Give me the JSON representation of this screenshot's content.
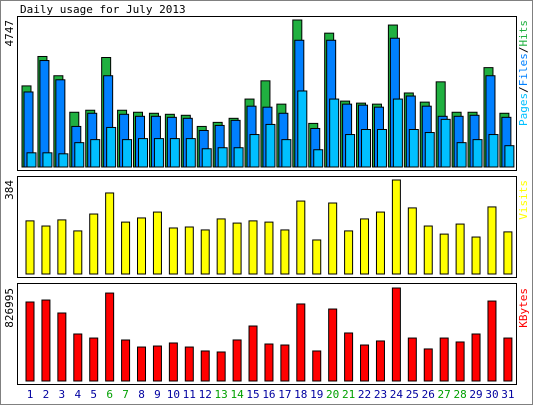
{
  "chart_data": [
    {
      "type": "bar",
      "title": "Daily usage for July 2013",
      "legend_separator": "/",
      "series": [
        {
          "name": "Pages",
          "color": "#00c0ff",
          "values": [
            458,
            458,
            426,
            786,
            884,
            1277,
            884,
            917,
            917,
            917,
            917,
            589,
            622,
            622,
            1048,
            1375,
            884,
            2455,
            557,
            2194,
            1048,
            1211,
            1211,
            2194,
            1211,
            1113,
            1539,
            786,
            884,
            1048,
            688
          ]
        },
        {
          "name": "Files",
          "color": "#0080ff",
          "values": [
            2423,
            3438,
            2816,
            1310,
            1735,
            2947,
            1702,
            1637,
            1637,
            1604,
            1572,
            1179,
            1342,
            1506,
            1964,
            1932,
            1735,
            4093,
            1244,
            4093,
            2030,
            1997,
            1932,
            4158,
            2292,
            1964,
            1637,
            1637,
            1670,
            2947,
            1604
          ]
        },
        {
          "name": "Hits",
          "color": "#20b040",
          "values": [
            2619,
            3569,
            2947,
            1768,
            1833,
            3536,
            1833,
            1768,
            1735,
            1702,
            1670,
            1310,
            1441,
            1572,
            2194,
            2783,
            2030,
            4747,
            1408,
            4322,
            2128,
            2063,
            2030,
            4584,
            2390,
            2095,
            2750,
            1768,
            1768,
            3209,
            1735
          ]
        }
      ],
      "ylim": [
        0,
        4747
      ],
      "yticks": [
        4747
      ]
    },
    {
      "type": "bar",
      "series": [
        {
          "name": "Visits",
          "color": "#ffff00",
          "values": [
            217,
            196,
            221,
            176,
            245,
            331,
            212,
            229,
            253,
            188,
            192,
            180,
            225,
            208,
            217,
            212,
            180,
            298,
            139,
            290,
            176,
            225,
            253,
            384,
            270,
            196,
            163,
            204,
            151,
            274,
            172
          ]
        }
      ],
      "ylim": [
        0,
        384
      ],
      "yticks": [
        384
      ]
    },
    {
      "type": "bar",
      "series": [
        {
          "name": "KBytes",
          "color": "#ff0000",
          "values": [
            702500,
            720000,
            604700,
            418000,
            382000,
            782000,
            364600,
            302000,
            311000,
            338000,
            302000,
            267000,
            258000,
            365000,
            489000,
            329000,
            320000,
            685000,
            267000,
            640000,
            427000,
            320000,
            356000,
            826995,
            382000,
            285000,
            382000,
            347000,
            418000,
            711000,
            382000
          ]
        }
      ],
      "ylim": [
        0,
        826995
      ],
      "yticks": [
        826995
      ],
      "categories": [
        "1",
        "2",
        "3",
        "4",
        "5",
        "6",
        "7",
        "8",
        "9",
        "10",
        "11",
        "12",
        "13",
        "14",
        "15",
        "16",
        "17",
        "18",
        "19",
        "20",
        "21",
        "22",
        "23",
        "24",
        "25",
        "26",
        "27",
        "28",
        "29",
        "30",
        "31"
      ],
      "category_colors": [
        "#0000a0",
        "#0000a0",
        "#0000a0",
        "#0000a0",
        "#0000a0",
        "#00a000",
        "#00a000",
        "#0000a0",
        "#0000a0",
        "#0000a0",
        "#0000a0",
        "#0000a0",
        "#00a000",
        "#00a000",
        "#0000a0",
        "#0000a0",
        "#0000a0",
        "#0000a0",
        "#0000a0",
        "#00a000",
        "#00a000",
        "#0000a0",
        "#0000a0",
        "#0000a0",
        "#0000a0",
        "#0000a0",
        "#00a000",
        "#00a000",
        "#0000a0",
        "#0000a0",
        "#0000a0"
      ]
    }
  ]
}
